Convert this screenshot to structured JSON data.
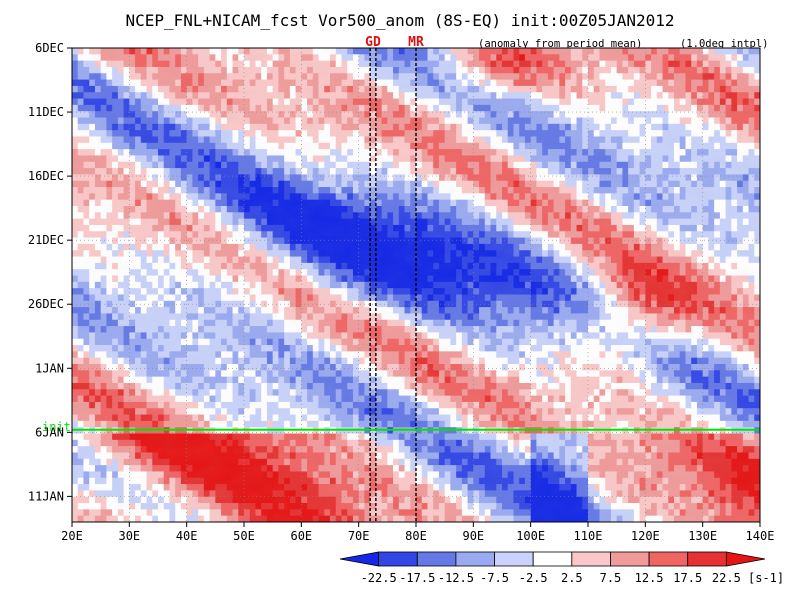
{
  "chart_data": {
    "type": "heatmap",
    "title": "NCEP_FNL+NICAM_fcst Vor500_anom (8S-EQ) init:00Z05JAN2012",
    "subtitle_left": "(anomaly from period mean)",
    "subtitle_right": "(1.0deg intpl)",
    "x_ticks": [
      "20E",
      "30E",
      "40E",
      "50E",
      "60E",
      "70E",
      "80E",
      "90E",
      "100E",
      "110E",
      "120E",
      "130E",
      "140E"
    ],
    "x_range": [
      20,
      140
    ],
    "y_ticks": [
      "6DEC",
      "11DEC",
      "16DEC",
      "21DEC",
      "26DEC",
      "1JAN",
      "6JAN",
      "11JAN"
    ],
    "y_range": [
      "6DEC2011",
      "12JAN2012"
    ],
    "init_label": "init",
    "init_date": "05JAN2012",
    "markers": [
      {
        "label": "GD",
        "lon": [
          72,
          73
        ]
      },
      {
        "label": "MR",
        "lon": [
          80
        ]
      }
    ],
    "colorbar": {
      "unit": "[s-1]",
      "levels": [
        "-22.5",
        "-17.5",
        "-12.5",
        "-7.5",
        "-2.5",
        "2.5",
        "7.5",
        "12.5",
        "17.5",
        "22.5"
      ],
      "colors": [
        "#1428e6",
        "#3246e6",
        "#6478e6",
        "#9aaaf0",
        "#c8d2fa",
        "#ffffff",
        "#fac8c8",
        "#f09a9a",
        "#f06464",
        "#e63232",
        "#e61414"
      ]
    },
    "colors": {
      "init_line": "#00e600",
      "marker_text": "#e01010",
      "background": "#ffffff"
    }
  }
}
